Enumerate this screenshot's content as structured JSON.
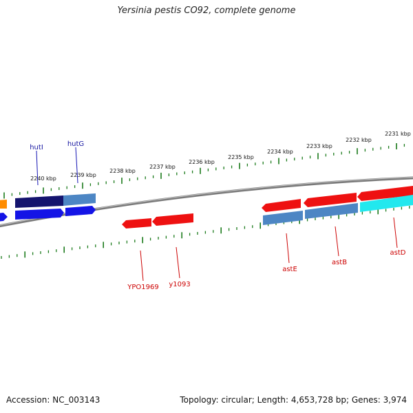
{
  "title": "Yersinia pestis CO92, complete genome",
  "footer": {
    "accession": "Accession: NC_003143",
    "summary": "Topology: circular; Length: 4,653,728 bp; Genes: 3,974"
  },
  "scale": {
    "labels": [
      "2231 kbp",
      "2232 kbp",
      "2233 kbp",
      "2234 kbp",
      "2235 kbp",
      "2236 kbp",
      "2237 kbp",
      "2238 kbp",
      "2239 kbp",
      "2240 kbp"
    ]
  },
  "genes_top": [
    {
      "name": "hutI",
      "color": "#1a1a80"
    },
    {
      "name": "hutG",
      "color": "#1a1acc"
    }
  ],
  "genes_bottom": [
    {
      "name": "YPO1969",
      "color": "#cc0000"
    },
    {
      "name": "y1093",
      "color": "#cc0000"
    },
    {
      "name": "astE",
      "color": "#cc0000"
    },
    {
      "name": "astB",
      "color": "#cc0000"
    },
    {
      "name": "astD",
      "color": "#cc0000"
    }
  ],
  "colors": {
    "tick": "#1a7a1a",
    "backbone": "#777777",
    "forward_red": "#ee1111",
    "light_blue": "#4d86c4",
    "dark_navy": "#14146e",
    "blue": "#1414e6",
    "cyan": "#22e8ee",
    "orange": "#ff8c00"
  }
}
